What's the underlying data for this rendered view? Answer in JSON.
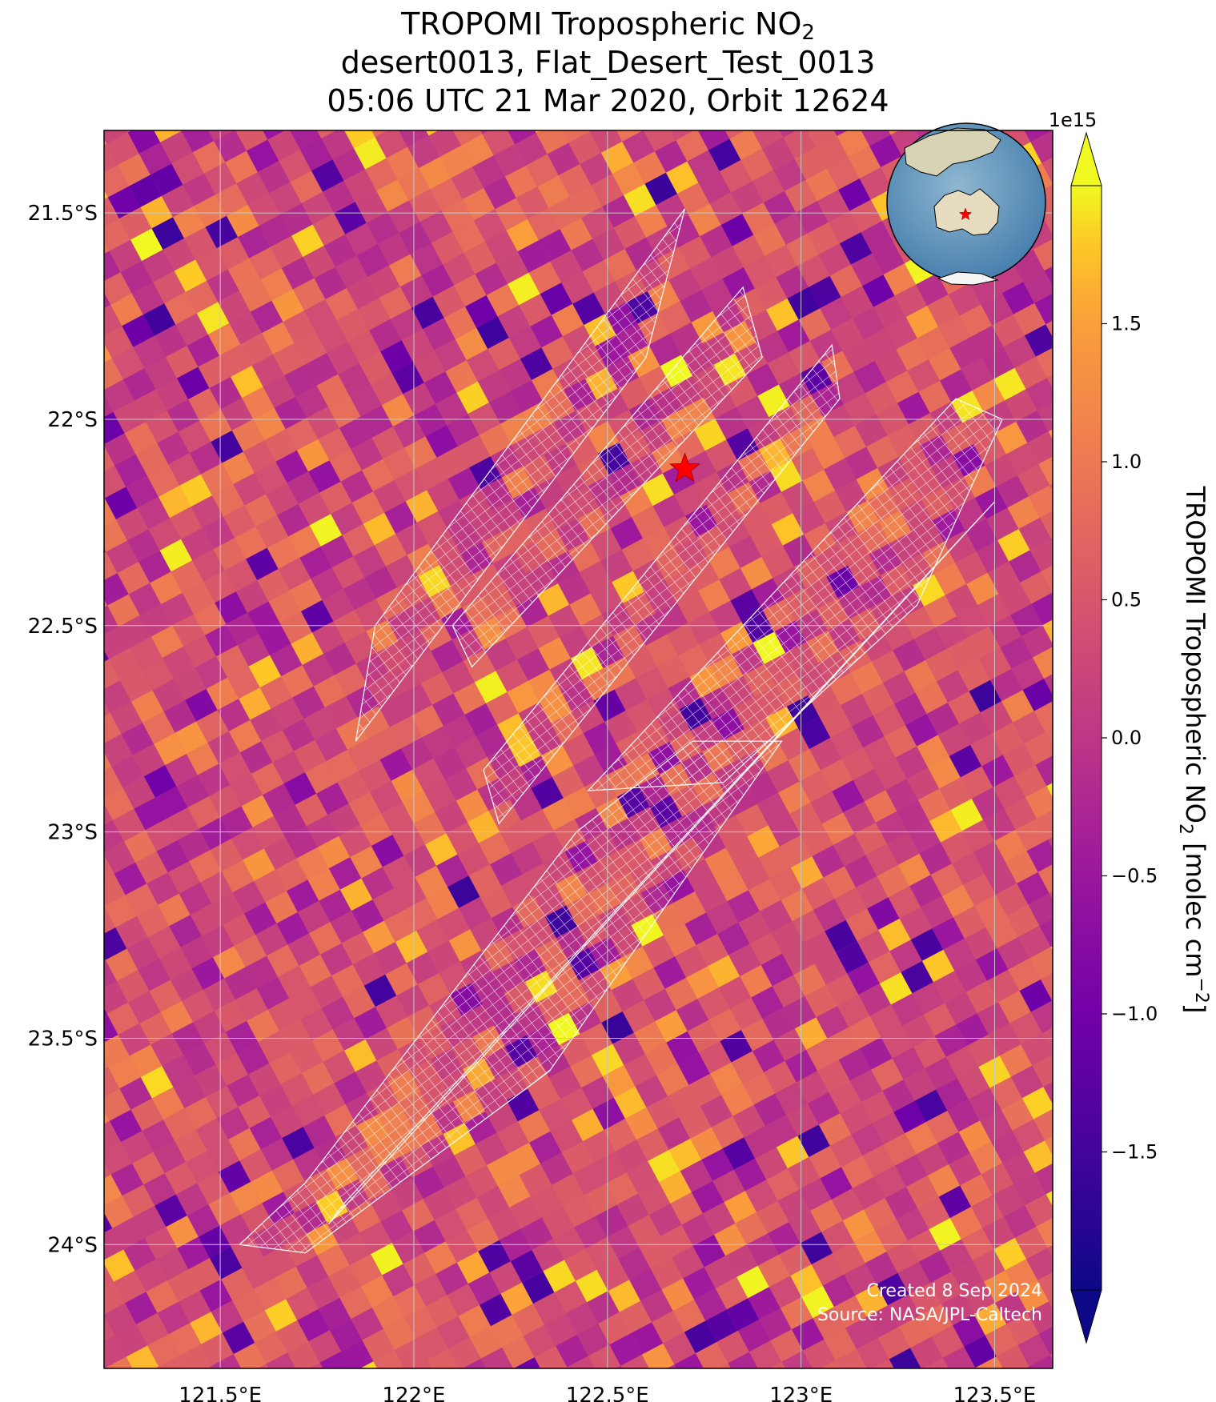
{
  "title": {
    "line1_prefix": "TROPOMI Tropospheric NO",
    "line1_sub": "2",
    "line2": "desert0013, Flat_Desert_Test_0013",
    "line3": "05:06 UTC 21 Mar 2020, Orbit 12624"
  },
  "credits": {
    "created": "Created 8 Sep 2024",
    "source": "Source: NASA/JPL-Caltech"
  },
  "colors": {
    "target_star": "#ff0000",
    "footprint_outline": "#ffffff",
    "gridline": "#c8c8c8",
    "colormap": "plasma"
  },
  "chart_data": {
    "type": "heatmap",
    "projection": "map",
    "x_ticks": [
      "121.5°E",
      "122°E",
      "122.5°E",
      "123°E",
      "123.5°E"
    ],
    "x_tick_values": [
      121.5,
      122.0,
      122.5,
      123.0,
      123.5
    ],
    "y_ticks": [
      "21.5°S",
      "22°S",
      "22.5°S",
      "23°S",
      "23.5°S",
      "24°S"
    ],
    "y_tick_values": [
      -21.5,
      -22.0,
      -22.5,
      -23.0,
      -23.5,
      -24.0
    ],
    "xlim": [
      121.2,
      123.65
    ],
    "ylim": [
      -24.3,
      -21.3
    ],
    "grid": true,
    "colorbar": {
      "label_prefix": "TROPOMI Tropospheric NO",
      "label_sub": "2",
      "label_suffix": " [molec cm",
      "label_sup": "−2",
      "label_end": "]",
      "offset_text": "1e15",
      "ticks": [
        "1.5",
        "1.0",
        "0.5",
        "0.0",
        "−0.5",
        "−1.0",
        "−1.5"
      ],
      "tick_values": [
        1.5,
        1.0,
        0.5,
        0.0,
        -0.5,
        -1.0,
        -1.5
      ],
      "vmin": -2.0,
      "vmax": 2.0,
      "extend": "both"
    },
    "target": {
      "lon": 122.7,
      "lat": -22.12,
      "marker": "star"
    },
    "inset": {
      "type": "globe",
      "region": "Australia",
      "placement": "top-right"
    },
    "typical_value": 0.5
  }
}
